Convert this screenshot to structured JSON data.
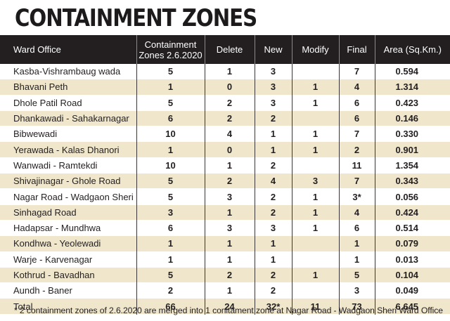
{
  "title": "CONTAINMENT ZONES",
  "table": {
    "headers": {
      "ward": "Ward Office",
      "zones_line1": "Containment",
      "zones_line2": "Zones 2.6.2020",
      "delete": "Delete",
      "new": "New",
      "modify": "Modify",
      "final": "Final",
      "area": "Area (Sq.Km.)"
    },
    "rows": [
      {
        "ward": "Kasba-Vishrambaug wada",
        "zones": "5",
        "delete": "1",
        "new": "3",
        "modify": "",
        "final": "7",
        "area": "0.594"
      },
      {
        "ward": "Bhavani Peth",
        "zones": "1",
        "delete": "0",
        "new": "3",
        "modify": "1",
        "final": "4",
        "area": "1.314"
      },
      {
        "ward": "Dhole Patil Road",
        "zones": "5",
        "delete": "2",
        "new": "3",
        "modify": "1",
        "final": "6",
        "area": "0.423"
      },
      {
        "ward": "Dhankawadi - Sahakarnagar",
        "zones": "6",
        "delete": "2",
        "new": "2",
        "modify": "",
        "final": "6",
        "area": "0.146"
      },
      {
        "ward": "Bibwewadi",
        "zones": "10",
        "delete": "4",
        "new": "1",
        "modify": "1",
        "final": "7",
        "area": "0.330"
      },
      {
        "ward": "Yerawada - Kalas Dhanori",
        "zones": "1",
        "delete": "0",
        "new": "1",
        "modify": "1",
        "final": "2",
        "area": "0.901"
      },
      {
        "ward": "Wanwadi - Ramtekdi",
        "zones": "10",
        "delete": "1",
        "new": "2",
        "modify": "",
        "final": "11",
        "area": "1.354"
      },
      {
        "ward": "Shivajinagar - Ghole Road",
        "zones": "5",
        "delete": "2",
        "new": "4",
        "modify": "3",
        "final": "7",
        "area": "0.343"
      },
      {
        "ward": "Nagar Road - Wadgaon Sheri",
        "zones": "5",
        "delete": "3",
        "new": "2",
        "modify": "1",
        "final": "3*",
        "area": "0.056"
      },
      {
        "ward": "Sinhagad Road",
        "zones": "3",
        "delete": "1",
        "new": "2",
        "modify": "1",
        "final": "4",
        "area": "0.424"
      },
      {
        "ward": "Hadapsar - Mundhwa",
        "zones": "6",
        "delete": "3",
        "new": "3",
        "modify": "1",
        "final": "6",
        "area": "0.514"
      },
      {
        "ward": "Kondhwa - Yeolewadi",
        "zones": "1",
        "delete": "1",
        "new": "1",
        "modify": "",
        "final": "1",
        "area": "0.079"
      },
      {
        "ward": "Warje - Karvenagar",
        "zones": "1",
        "delete": "1",
        "new": "1",
        "modify": "",
        "final": "1",
        "area": "0.013"
      },
      {
        "ward": "Kothrud - Bavadhan",
        "zones": "5",
        "delete": "2",
        "new": "2",
        "modify": "1",
        "final": "5",
        "area": "0.104"
      },
      {
        "ward": "Aundh - Baner",
        "zones": "2",
        "delete": "1",
        "new": "2",
        "modify": "",
        "final": "3",
        "area": "0.049"
      }
    ],
    "total": {
      "ward": "Total",
      "zones": "66",
      "delete": "24",
      "new": "32*",
      "modify": "11",
      "final": "73",
      "area": "6.645"
    }
  },
  "footnote": "* 2 containment zones of 2.6.2020 are merged into 1 conitament zone at Nagar Road - Wadgaon Sheri Ward Office",
  "colors": {
    "header_bg": "#231f20",
    "header_text": "#ffffff",
    "row_alt_bg": "#efe6cc",
    "row_bg": "#ffffff",
    "text": "#231f20"
  }
}
